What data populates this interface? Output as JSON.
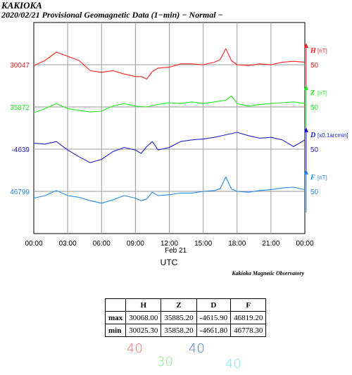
{
  "header": {
    "station": "KAKIOKA",
    "subtitle": "2020/02/21  Provisional Geomagnetic Data (1−min)  − Normal −"
  },
  "chart_data": {
    "type": "line",
    "x_ticks": [
      "00:00",
      "03:00",
      "06:00",
      "09:00",
      "12:00",
      "15:00",
      "18:00",
      "21:00",
      "00:00"
    ],
    "x_date_label": "Feb 21",
    "xlabel": "UTC",
    "grid": true,
    "observatory": "Kakioka Magnetic Observatory",
    "series": [
      {
        "name": "H",
        "unit": "[nT]",
        "baseline": "30047",
        "scale": "50",
        "color": "#ff2020",
        "x_hours": [
          0,
          1,
          2,
          3,
          4,
          5,
          6,
          7,
          8,
          9,
          9.5,
          10,
          10.5,
          11,
          12,
          13,
          14,
          15,
          16,
          16.5,
          17,
          17.5,
          18,
          19,
          20,
          21,
          22,
          23,
          24
        ],
        "values": [
          30046,
          30052,
          30062,
          30057,
          30052,
          30040,
          30038,
          30040,
          30036,
          30033,
          30033,
          30030,
          30039,
          30043,
          30044,
          30048,
          30048,
          30047,
          30050,
          30053,
          30066,
          30052,
          30047,
          30046,
          30048,
          30047,
          30050,
          30051,
          30050
        ]
      },
      {
        "name": "Z",
        "unit": "[nT]",
        "baseline": "35872",
        "scale": "50",
        "color": "#22ee22",
        "x_hours": [
          0,
          1,
          2,
          3,
          4,
          5,
          6,
          7,
          8,
          9,
          10,
          11,
          12,
          13,
          14,
          15,
          16,
          17,
          17.5,
          18,
          19,
          20,
          21,
          22,
          23,
          24
        ],
        "values": [
          35865,
          35870,
          35876,
          35870,
          35868,
          35866,
          35867,
          35873,
          35876,
          35873,
          35872,
          35875,
          35877,
          35876,
          35878,
          35876,
          35878,
          35880,
          35885,
          35876,
          35873,
          35875,
          35876,
          35877,
          35878,
          35876
        ]
      },
      {
        "name": "D",
        "unit": "[x0.1arcmin]",
        "baseline": "-4639",
        "scale": "50",
        "color": "#2222cc",
        "x_hours": [
          0,
          1,
          2,
          3,
          4,
          5,
          6,
          7,
          8,
          9,
          9.5,
          10,
          10.5,
          11,
          12,
          13,
          14,
          15,
          16,
          17,
          18,
          19,
          20,
          21,
          22,
          23,
          24
        ],
        "values": [
          -4632,
          -4633,
          -4630,
          -4640,
          -4648,
          -4655,
          -4651,
          -4642,
          -4637,
          -4640,
          -4644,
          -4636,
          -4630,
          -4640,
          -4637,
          -4630,
          -4628,
          -4627,
          -4625,
          -4622,
          -4619,
          -4623,
          -4626,
          -4625,
          -4628,
          -4636,
          -4628
        ]
      },
      {
        "name": "F",
        "unit": "[nT]",
        "baseline": "46799",
        "scale": "50",
        "color": "#2288ee",
        "x_hours": [
          0,
          1,
          2,
          3,
          4,
          5,
          6,
          7,
          8,
          9,
          9.5,
          10,
          10.5,
          11,
          12,
          13,
          14,
          15,
          16,
          16.5,
          17,
          17.5,
          18,
          19,
          20,
          21,
          22,
          23,
          24
        ],
        "values": [
          46791,
          46794,
          46800,
          46794,
          46792,
          46788,
          46785,
          46789,
          46794,
          46791,
          46788,
          46790,
          46798,
          46794,
          46795,
          46797,
          46797,
          46799,
          46800,
          46802,
          46816,
          46802,
          46799,
          46798,
          46800,
          46801,
          46803,
          46804,
          46801
        ]
      }
    ]
  },
  "stats_table": {
    "columns": [
      "H",
      "Z",
      "D",
      "F"
    ],
    "rows": [
      {
        "label": "max",
        "values": [
          "30068.00",
          "35885.20",
          "-4615.90",
          "46819.20"
        ]
      },
      {
        "label": "min",
        "values": [
          "30025.30",
          "35858.20",
          "-4661.80",
          "46778.30"
        ]
      }
    ]
  },
  "handwritten": {
    "h": {
      "text": "40",
      "color": "#ff6b6b"
    },
    "z": {
      "text": "30",
      "color": "#7df07d"
    },
    "d": {
      "text": "40",
      "color": "#4a7fd8"
    },
    "f": {
      "text": "40",
      "color": "#7fe8ea"
    }
  }
}
